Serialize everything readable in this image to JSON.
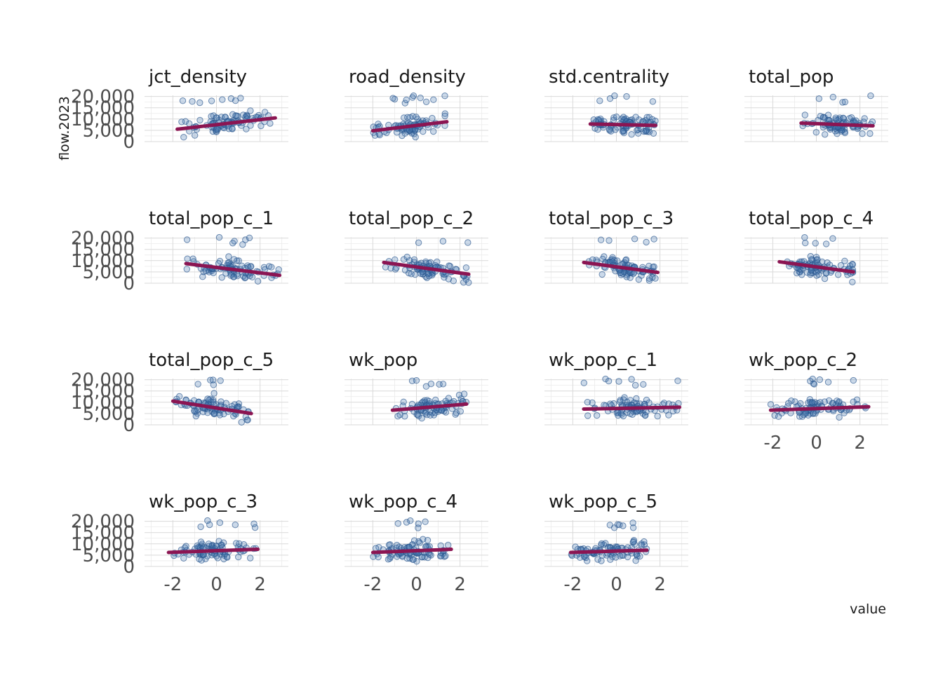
{
  "chart_data": {
    "type": "scatter",
    "subtype": "facet_grid_with_linear_fit",
    "ylabel": "flow.2023",
    "xlabel": "value",
    "x_ticks": [
      -2,
      0,
      2
    ],
    "x_tick_labels": [
      "-2",
      "0",
      "2"
    ],
    "y_ticks": [
      0,
      5000,
      10000,
      15000,
      20000
    ],
    "y_tick_labels": [
      "0",
      "5,000",
      "10,000",
      "15,000",
      "20,000"
    ],
    "xlim": [
      -3.3,
      3.3
    ],
    "ylim": [
      0,
      20500
    ],
    "grid": true,
    "point_color": "#4678af",
    "fit_color": "#8b1552",
    "facets": [
      {
        "name": "jct_density",
        "x_range": [
          -1.8,
          2.7
        ],
        "fit": [
          [
            -1.8,
            5500
          ],
          [
            2.7,
            10500
          ]
        ]
      },
      {
        "name": "road_density",
        "x_range": [
          -2.0,
          1.4
        ],
        "fit": [
          [
            -2.0,
            4800
          ],
          [
            1.4,
            8800
          ]
        ]
      },
      {
        "name": "std.centrality",
        "x_range": [
          -1.2,
          1.8
        ],
        "fit": [
          [
            -1.2,
            7800
          ],
          [
            1.8,
            7200
          ]
        ]
      },
      {
        "name": "total_pop",
        "x_range": [
          -0.7,
          2.6
        ],
        "fit": [
          [
            -0.7,
            8200
          ],
          [
            2.6,
            7000
          ]
        ]
      },
      {
        "name": "total_pop_c_1",
        "x_range": [
          -1.4,
          2.9
        ],
        "fit": [
          [
            -1.4,
            8700
          ],
          [
            2.9,
            3500
          ]
        ]
      },
      {
        "name": "total_pop_c_2",
        "x_range": [
          -1.5,
          2.4
        ],
        "fit": [
          [
            -1.5,
            9200
          ],
          [
            2.4,
            4000
          ]
        ]
      },
      {
        "name": "total_pop_c_3",
        "x_range": [
          -1.5,
          1.9
        ],
        "fit": [
          [
            -1.5,
            9200
          ],
          [
            1.9,
            4800
          ]
        ]
      },
      {
        "name": "total_pop_c_4",
        "x_range": [
          -1.7,
          1.7
        ],
        "fit": [
          [
            -1.7,
            9500
          ],
          [
            1.7,
            5000
          ]
        ]
      },
      {
        "name": "total_pop_c_5",
        "x_range": [
          -2.0,
          1.6
        ],
        "fit": [
          [
            -2.0,
            10500
          ],
          [
            1.6,
            5000
          ]
        ]
      },
      {
        "name": "wk_pop",
        "x_range": [
          -1.1,
          2.3
        ],
        "fit": [
          [
            -1.1,
            6500
          ],
          [
            2.3,
            9200
          ]
        ]
      },
      {
        "name": "wk_pop_c_1",
        "x_range": [
          -1.5,
          2.9
        ],
        "fit": [
          [
            -1.5,
            7000
          ],
          [
            2.9,
            7800
          ]
        ]
      },
      {
        "name": "wk_pop_c_2",
        "x_range": [
          -2.1,
          2.4
        ],
        "fit": [
          [
            -2.1,
            6500
          ],
          [
            2.4,
            8000
          ]
        ]
      },
      {
        "name": "wk_pop_c_3",
        "x_range": [
          -2.2,
          1.9
        ],
        "fit": [
          [
            -2.2,
            6200
          ],
          [
            1.9,
            7600
          ]
        ]
      },
      {
        "name": "wk_pop_c_4",
        "x_range": [
          -2.0,
          1.6
        ],
        "fit": [
          [
            -2.0,
            6200
          ],
          [
            1.6,
            7600
          ]
        ]
      },
      {
        "name": "wk_pop_c_5",
        "x_range": [
          -2.1,
          1.4
        ],
        "fit": [
          [
            -2.1,
            6200
          ],
          [
            1.4,
            7200
          ]
        ]
      }
    ]
  }
}
